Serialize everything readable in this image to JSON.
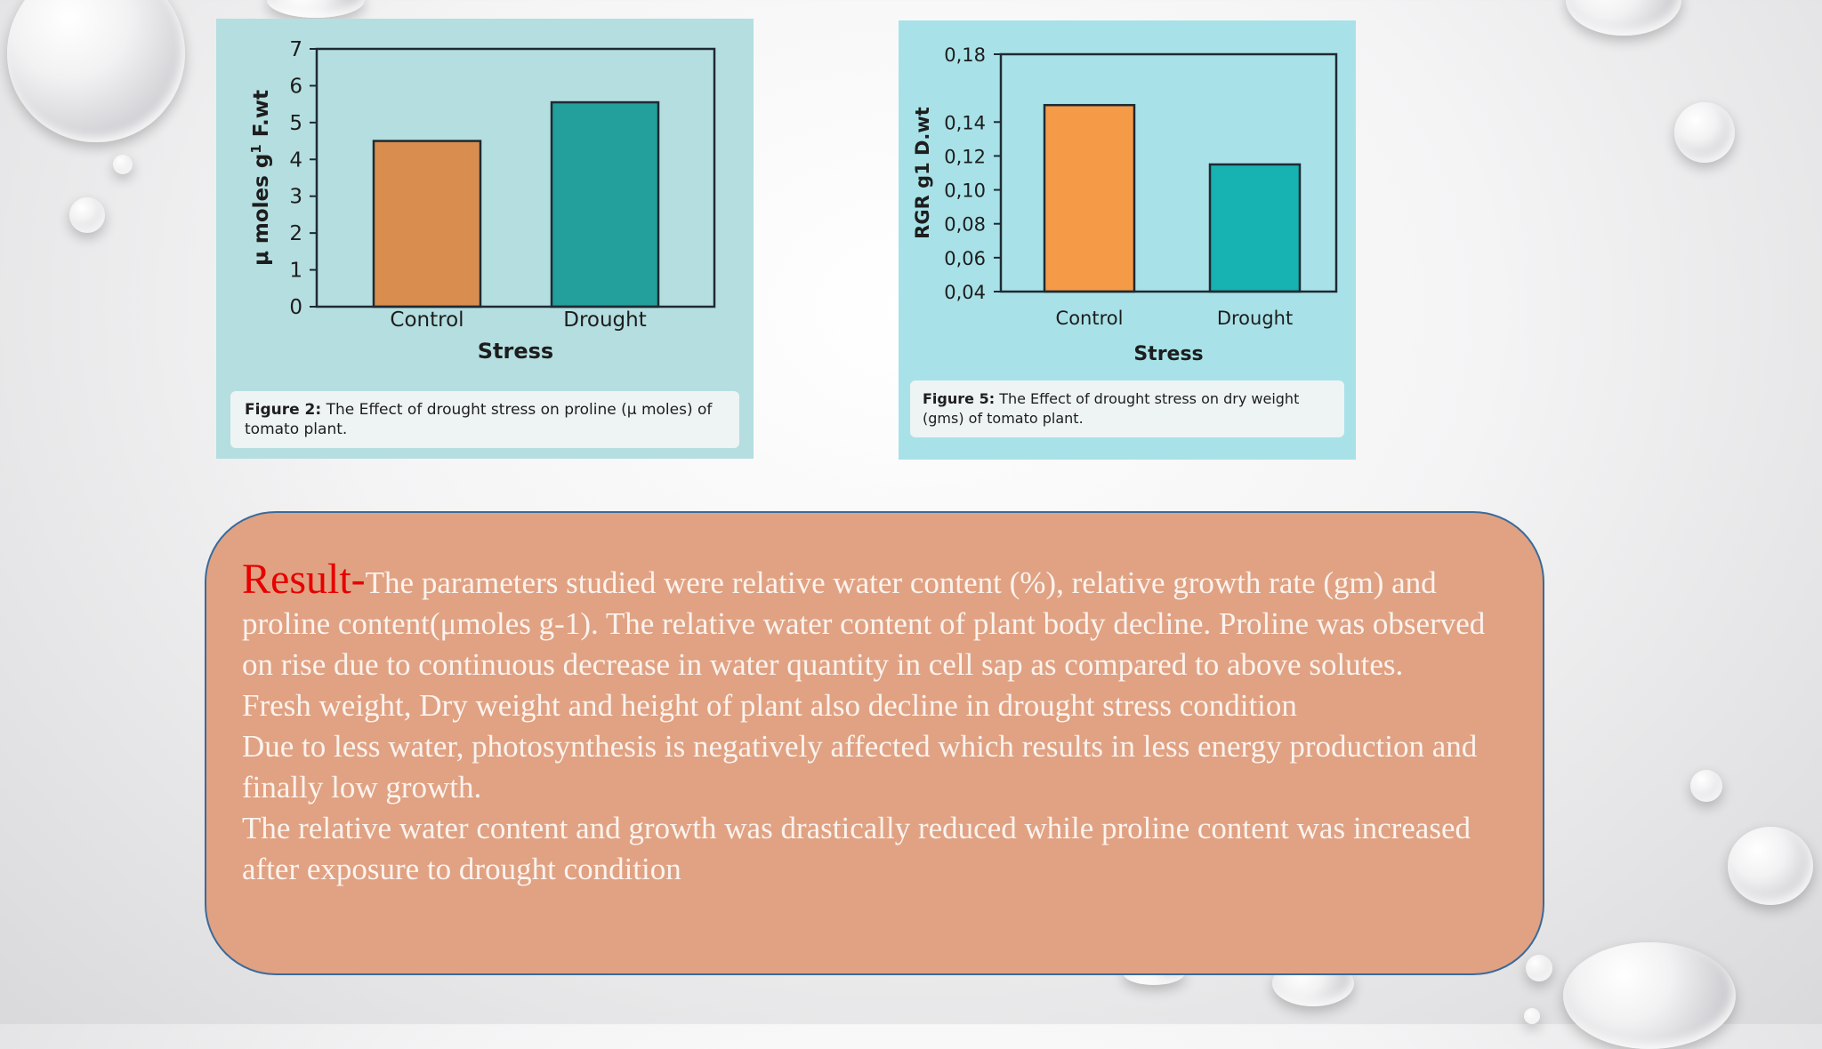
{
  "chart_data": [
    {
      "type": "bar",
      "categories": [
        "Control",
        "Drought"
      ],
      "values": [
        4.5,
        5.55
      ],
      "xlabel": "Stress",
      "ylabel": "μ moles g",
      "ylabel_sup": "1",
      "ylabel_suffix": " F.wt",
      "ylim": [
        0,
        7
      ],
      "yticks": [
        "0",
        "1",
        "2",
        "3",
        "4",
        "5",
        "6",
        "7"
      ],
      "grid": false,
      "colors": [
        "#d98e4f",
        "#239f9c"
      ],
      "caption_label": "Figure 2:",
      "caption_text": " The Effect of drought stress on proline (μ moles) of tomato plant."
    },
    {
      "type": "bar",
      "categories": [
        "Control",
        "Drought"
      ],
      "values": [
        0.15,
        0.115
      ],
      "xlabel": "Stress",
      "ylabel": "RGR g1 D.wt",
      "ylim": [
        0.04,
        0.18
      ],
      "yticks": [
        "0,04",
        "0,06",
        "0,08",
        "0,10",
        "0,12",
        "0,14",
        "0,18"
      ],
      "grid": false,
      "colors": [
        "#f59a47",
        "#17b2b2"
      ],
      "caption_label": "Figure 5:",
      "caption_text": " The Effect of drought stress on dry weight (gms) of tomato plant."
    }
  ],
  "result": {
    "label": "Result-",
    "lines": [
      "The parameters studied were relative water content (%), relative growth rate (gm) and proline content(μmoles g-1). The relative water content of plant body decline. Proline was observed on rise due to continuous decrease in water quantity in cell sap as compared to above solutes.",
      "Fresh weight, Dry weight and height of plant also decline in drought stress condition",
      "Due to less water, photosynthesis is negatively affected which results in less energy production and finally low growth.",
      "The relative water content and growth was drastically reduced while proline content was increased after exposure to drought condition"
    ]
  }
}
